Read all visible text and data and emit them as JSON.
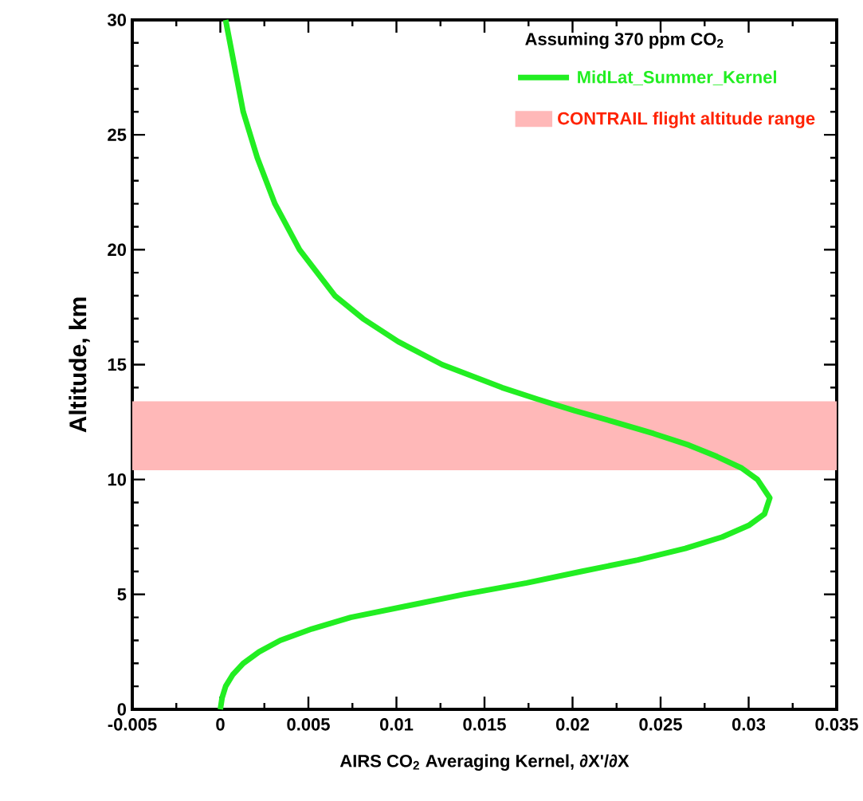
{
  "chart_data": {
    "type": "line",
    "xlabel": "AIRS CO$_{2}$ Averaging Kernel, ∂X'/∂X",
    "ylabel": "Altitude, km",
    "legend_title": "Assuming 370 ppm CO$_{2}$",
    "legend": "top right",
    "xlim": [
      -0.005,
      0.035
    ],
    "xticks": [
      -0.005,
      0,
      0.005,
      0.01,
      0.015,
      0.02,
      0.025,
      0.03,
      0.035
    ],
    "ylim": [
      0,
      30
    ],
    "yticks": [
      0,
      5,
      10,
      15,
      20,
      25,
      30
    ],
    "grid": false,
    "series": [
      {
        "name": "MidLat_Summer_Kernel",
        "color": "#22ee22",
        "x": [
          0.0,
          0.0001,
          0.0003,
          0.0007,
          0.0013,
          0.0022,
          0.0034,
          0.0052,
          0.0074,
          0.0106,
          0.0138,
          0.0174,
          0.0205,
          0.0237,
          0.0264,
          0.0285,
          0.03,
          0.0309,
          0.0312,
          0.0305,
          0.0296,
          0.0282,
          0.0266,
          0.0246,
          0.0224,
          0.0201,
          0.018,
          0.016,
          0.0126,
          0.0101,
          0.0081,
          0.0065,
          0.0045,
          0.0031,
          0.0021,
          0.0013,
          0.0008,
          0.0003
        ],
        "values": [
          0,
          0.5,
          1,
          1.5,
          2,
          2.5,
          3,
          3.5,
          4,
          4.5,
          5,
          5.5,
          6,
          6.5,
          7,
          7.5,
          8,
          8.5,
          9.2,
          10,
          10.5,
          11,
          11.5,
          12,
          12.5,
          13,
          13.5,
          14,
          15,
          16,
          17,
          18,
          20,
          22,
          24,
          26,
          28,
          30
        ]
      }
    ],
    "bands": [
      {
        "axis": "y",
        "from": 10.4,
        "to": 13.4,
        "label": "CONTRAIL flight altitude range",
        "color": "#ffb8b8"
      }
    ]
  }
}
